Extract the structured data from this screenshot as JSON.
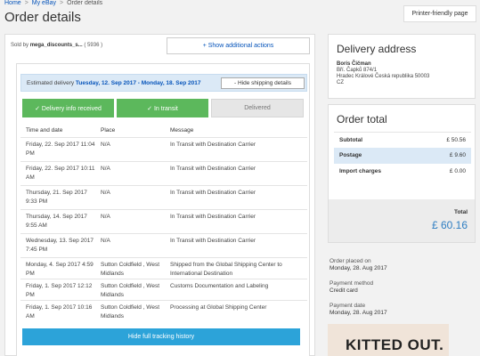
{
  "breadcrumb": {
    "home": "Home",
    "my_ebay": "My eBay",
    "current": "Order details",
    "sep": ">"
  },
  "page_title": "Order details",
  "print_button": "Printer-friendly page",
  "seller": {
    "prefix": "Sold by",
    "name": "mega_discounts_s...",
    "score": "( 5936 )"
  },
  "add_actions": "+ Show additional actions",
  "estimate": {
    "prefix": "Estimated delivery",
    "dates": "Tuesday, 12. Sep 2017 - Monday, 18. Sep 2017",
    "hide_button": "- Hide shipping details"
  },
  "steps": [
    "✓ Delivery info received",
    "✓ In transit",
    "Delivered"
  ],
  "columns": [
    "Time and date",
    "Place",
    "Message"
  ],
  "events": [
    {
      "time": "Friday, 22. Sep 2017 11:04 PM",
      "place": "N/A",
      "message": "In Transit with Destination Carrier"
    },
    {
      "time": "Friday, 22. Sep 2017 10:11 AM",
      "place": "N/A",
      "message": "In Transit with Destination Carrier"
    },
    {
      "time": "Thursday, 21. Sep 2017 9:33 PM",
      "place": "N/A",
      "message": "In Transit with Destination Carrier"
    },
    {
      "time": "Thursday, 14. Sep 2017 9:55 AM",
      "place": "N/A",
      "message": "In Transit with Destination Carrier"
    },
    {
      "time": "Wednesday, 13. Sep 2017 7:45 PM",
      "place": "N/A",
      "message": "In Transit with Destination Carrier"
    },
    {
      "time": "Monday, 4. Sep 2017 4:59 PM",
      "place": "Sutton Coldfield , West Midlands",
      "message": "Shipped from the Global Shipping Center to International Destination"
    },
    {
      "time": "Friday, 1. Sep 2017 12:12 PM",
      "place": "Sutton Coldfield , West Midlands",
      "message": "Customs Documentation and Labeling"
    },
    {
      "time": "Friday, 1. Sep 2017 10:16 AM",
      "place": "Sutton Coldfield , West Midlands",
      "message": "Processing at Global Shipping Center"
    }
  ],
  "hide_tracking": "Hide full tracking history",
  "delivery": {
    "title": "Delivery address",
    "name": "Boris Čičman",
    "line1": "Bří. Čapků 874/1",
    "line2": "Hradec Králové Česká republika 50003",
    "country": "CZ"
  },
  "order_total": {
    "title": "Order total",
    "subtotal_label": "Subtotal",
    "subtotal": "£ 50.56",
    "postage_label": "Postage",
    "postage": "£ 9.60",
    "import_label": "Import charges",
    "import": "£ 0.00",
    "total_label": "Total",
    "total": "£ 60.16"
  },
  "meta": {
    "placed_label": "Order placed on",
    "placed": "Monday, 28. Aug 2017",
    "payment_label": "Payment method",
    "payment": "Credit card",
    "pdate_label": "Payment date",
    "pdate": "Monday, 28. Aug 2017"
  },
  "ad": {
    "text": "KITTED OUT."
  },
  "colors": {
    "accent": "#0654ba",
    "green": "#5cb85c",
    "blue_button": "#2ca3d9"
  }
}
